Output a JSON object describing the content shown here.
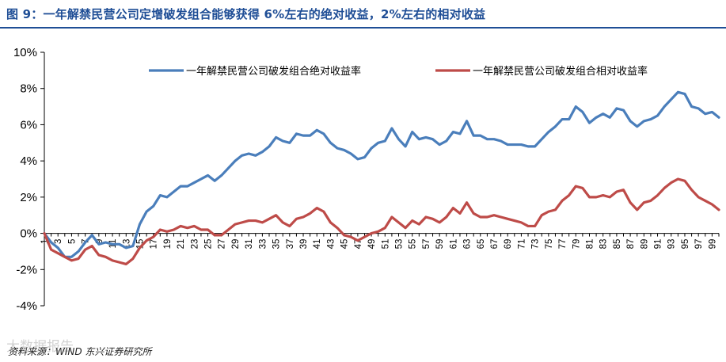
{
  "title": "图 9：一年解禁民营公司定增破发组合能够获得 6%左右的绝对收益，2%左右的相对收益",
  "source": "资料来源：WIND 东兴证券研究所",
  "watermark": "大数据报告",
  "colors": {
    "title": "#1f4e96",
    "absolute": "#4a7ebb",
    "relative": "#be4b48",
    "axis": "#000000"
  },
  "chart_data": {
    "type": "line",
    "ylim": [
      -4,
      10
    ],
    "yticks": [
      -4,
      -2,
      0,
      2,
      4,
      6,
      8,
      10
    ],
    "ytick_labels": [
      "-4%",
      "-2%",
      "0%",
      "2%",
      "4%",
      "6%",
      "8%",
      "10%"
    ],
    "xlim": [
      1,
      100
    ],
    "xticks": [
      1,
      3,
      5,
      7,
      9,
      11,
      13,
      15,
      17,
      19,
      21,
      23,
      25,
      27,
      29,
      31,
      33,
      35,
      37,
      39,
      41,
      43,
      45,
      47,
      49,
      51,
      53,
      55,
      57,
      59,
      61,
      63,
      65,
      67,
      69,
      71,
      73,
      75,
      77,
      79,
      81,
      83,
      85,
      87,
      89,
      91,
      93,
      95,
      97,
      99
    ],
    "legend": "top",
    "series": [
      {
        "name": "一年解禁民营公司破发组合绝对收益率",
        "color": "#4a7ebb",
        "values": [
          0,
          -0.5,
          -0.8,
          -1.3,
          -1.3,
          -1.0,
          -0.5,
          -0.1,
          -0.6,
          -0.5,
          -0.6,
          -0.6,
          -0.8,
          -0.7,
          0.5,
          1.2,
          1.5,
          2.1,
          2.0,
          2.3,
          2.6,
          2.6,
          2.8,
          3.0,
          3.2,
          2.9,
          3.2,
          3.6,
          4.0,
          4.3,
          4.4,
          4.3,
          4.5,
          4.8,
          5.3,
          5.1,
          5.0,
          5.5,
          5.4,
          5.4,
          5.7,
          5.5,
          5.0,
          4.7,
          4.6,
          4.4,
          4.1,
          4.2,
          4.7,
          5.0,
          5.1,
          5.8,
          5.2,
          4.8,
          5.6,
          5.2,
          5.3,
          5.2,
          4.9,
          5.1,
          5.6,
          5.5,
          6.2,
          5.4,
          5.4,
          5.2,
          5.2,
          5.1,
          4.9,
          4.9,
          4.9,
          4.8,
          4.8,
          5.2,
          5.6,
          5.9,
          6.3,
          6.3,
          7.0,
          6.7,
          6.1,
          6.4,
          6.6,
          6.4,
          6.9,
          6.8,
          6.2,
          5.9,
          6.2,
          6.3,
          6.5,
          7.0,
          7.4,
          7.8,
          7.7,
          7.0,
          6.9,
          6.6,
          6.7,
          6.4
        ]
      },
      {
        "name": "一年解禁民营公司破发组合相对收益率",
        "color": "#be4b48",
        "values": [
          0,
          -0.9,
          -1.1,
          -1.3,
          -1.5,
          -1.4,
          -0.9,
          -0.7,
          -1.2,
          -1.3,
          -1.5,
          -1.6,
          -1.7,
          -1.4,
          -0.8,
          -0.4,
          -0.2,
          0.2,
          0.1,
          0.2,
          0.4,
          0.3,
          0.4,
          0.2,
          0.2,
          -0.1,
          -0.1,
          0.2,
          0.5,
          0.6,
          0.7,
          0.7,
          0.6,
          0.8,
          1.0,
          0.6,
          0.4,
          0.8,
          0.9,
          1.1,
          1.4,
          1.2,
          0.6,
          0.3,
          -0.1,
          -0.2,
          -0.4,
          -0.2,
          0.0,
          0.1,
          0.3,
          0.9,
          0.6,
          0.3,
          0.7,
          0.5,
          0.9,
          0.8,
          0.6,
          0.9,
          1.4,
          1.1,
          1.7,
          1.1,
          0.9,
          0.9,
          1.0,
          0.9,
          0.8,
          0.7,
          0.6,
          0.4,
          0.4,
          1.0,
          1.2,
          1.3,
          1.8,
          2.1,
          2.6,
          2.5,
          2.0,
          2.0,
          2.1,
          2.0,
          2.3,
          2.4,
          1.7,
          1.3,
          1.7,
          1.8,
          2.1,
          2.5,
          2.8,
          3.0,
          2.9,
          2.4,
          2.0,
          1.8,
          1.6,
          1.3
        ]
      }
    ]
  }
}
